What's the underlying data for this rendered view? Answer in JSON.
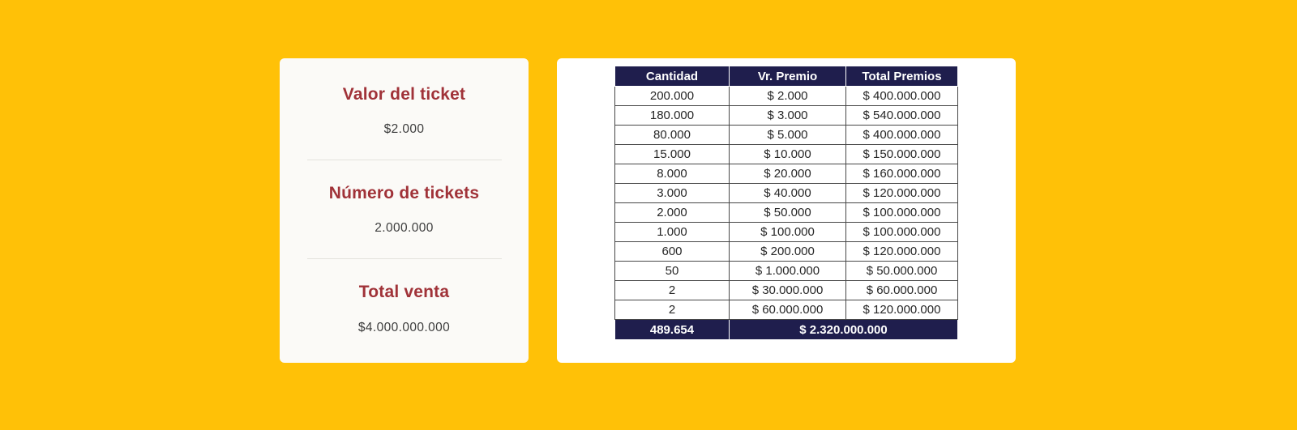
{
  "colors": {
    "page_background": "#FFC107",
    "card_background": "#FBFAF7",
    "heading_red": "#A03238",
    "table_header_navy": "#1F1E4D",
    "table_border": "#474747",
    "body_text": "#3D3D3D"
  },
  "left_card": {
    "sections": [
      {
        "title": "Valor del ticket",
        "value": "$2.000"
      },
      {
        "title": "Número de tickets",
        "value": "2.000.000"
      },
      {
        "title": "Total venta",
        "value": "$4.000.000.000"
      }
    ]
  },
  "prize_table": {
    "headers": [
      "Cantidad",
      "Vr. Premio",
      "Total Premios"
    ],
    "rows": [
      [
        "200.000",
        "$ 2.000",
        "$ 400.000.000"
      ],
      [
        "180.000",
        "$ 3.000",
        "$ 540.000.000"
      ],
      [
        "80.000",
        "$ 5.000",
        "$ 400.000.000"
      ],
      [
        "15.000",
        "$ 10.000",
        "$ 150.000.000"
      ],
      [
        "8.000",
        "$ 20.000",
        "$ 160.000.000"
      ],
      [
        "3.000",
        "$ 40.000",
        "$ 120.000.000"
      ],
      [
        "2.000",
        "$ 50.000",
        "$ 100.000.000"
      ],
      [
        "1.000",
        "$ 100.000",
        "$ 100.000.000"
      ],
      [
        "600",
        "$ 200.000",
        "$ 120.000.000"
      ],
      [
        "50",
        "$ 1.000.000",
        "$ 50.000.000"
      ],
      [
        "2",
        "$ 30.000.000",
        "$ 60.000.000"
      ],
      [
        "2",
        "$ 60.000.000",
        "$ 120.000.000"
      ]
    ],
    "footer": {
      "total_quantity": "489.654",
      "total_prizes": "$ 2.320.000.000"
    }
  }
}
